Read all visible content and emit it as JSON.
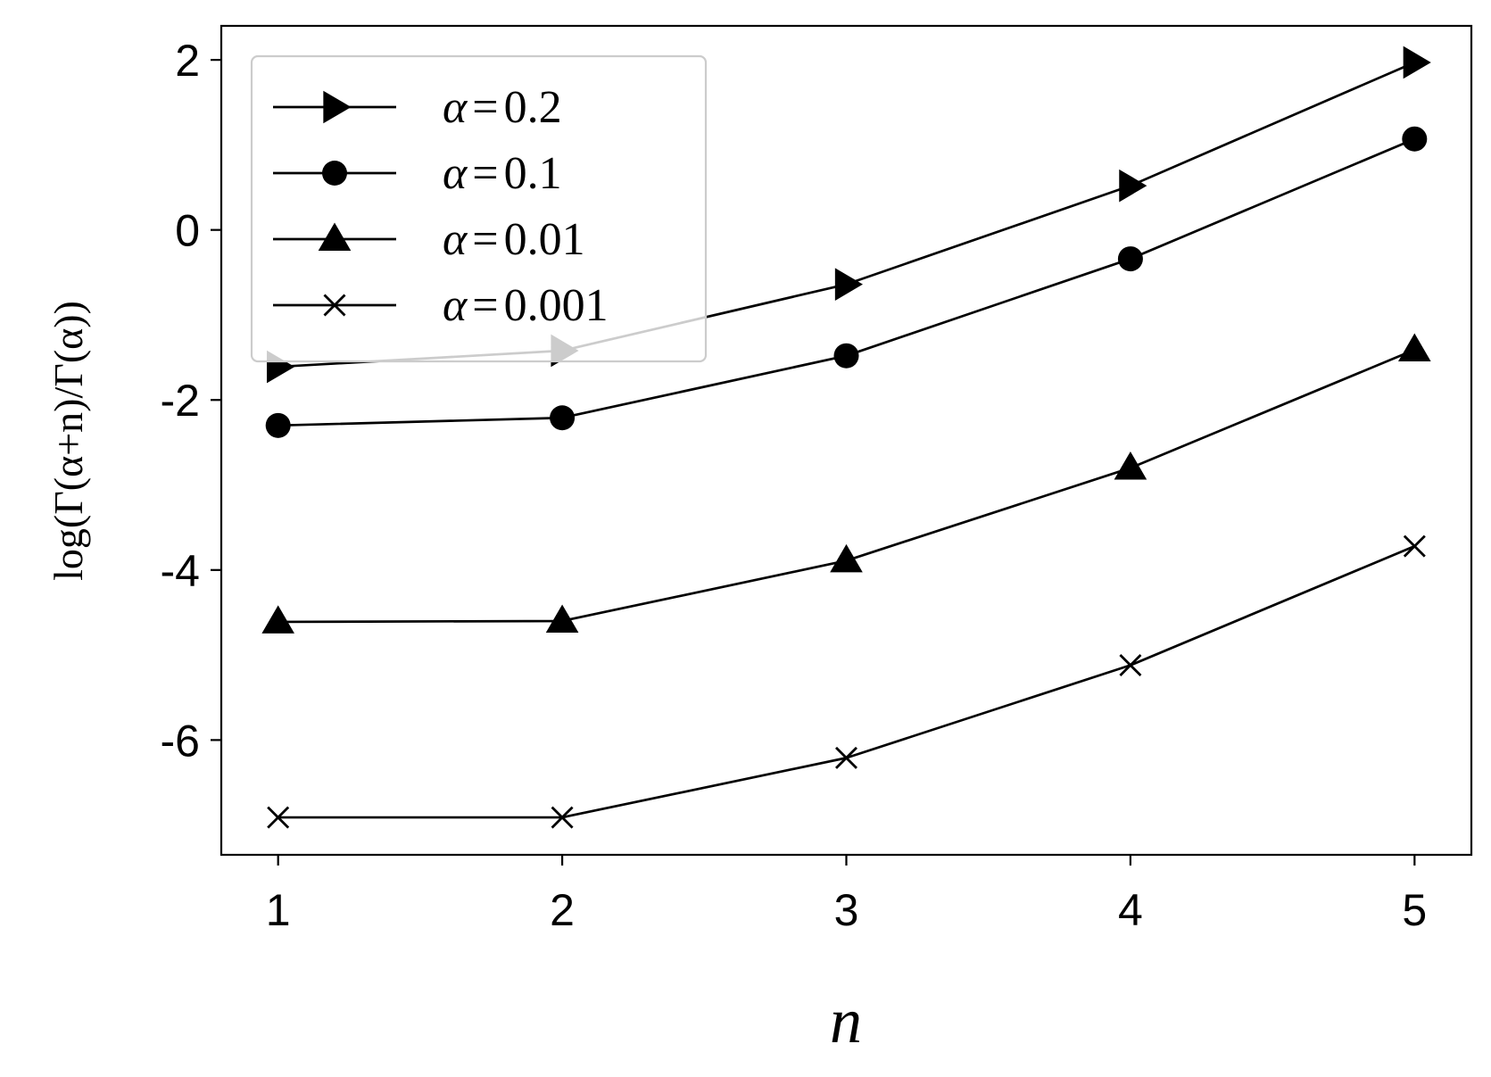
{
  "chart_data": {
    "type": "line",
    "title": "",
    "xlabel": "n",
    "ylabel": "log(Γ(α+n)/Γ(α))",
    "x": [
      1,
      2,
      3,
      4,
      5
    ],
    "x_ticks": [
      1,
      2,
      3,
      4,
      5
    ],
    "x_tick_labels": [
      "1",
      "2",
      "3",
      "4",
      "5"
    ],
    "y_ticks": [
      2,
      0,
      -2,
      -4,
      -6
    ],
    "y_tick_labels": [
      "2",
      "0",
      "-2",
      "-4",
      "-6"
    ],
    "xlim": [
      0.8,
      5.2
    ],
    "ylim": [
      -7.35,
      2.4
    ],
    "grid": false,
    "legend_position": "top-left",
    "colors": {
      "series": "#000000",
      "legend_frame": "#cccccc"
    },
    "series": [
      {
        "name": "α = 0.2",
        "legend_var": "α",
        "legend_eq": "=",
        "legend_value": "0.2",
        "marker": "triangle-right",
        "values": [
          -1.61,
          -1.42,
          -0.64,
          0.52,
          1.97
        ]
      },
      {
        "name": "α = 0.1",
        "legend_var": "α",
        "legend_eq": "=",
        "legend_value": "0.1",
        "marker": "circle",
        "values": [
          -2.3,
          -2.21,
          -1.48,
          -0.34,
          1.07
        ]
      },
      {
        "name": "α = 0.01",
        "legend_var": "α",
        "legend_eq": "=",
        "legend_value": "0.01",
        "marker": "triangle-up",
        "values": [
          -4.61,
          -4.6,
          -3.89,
          -2.8,
          -1.41
        ]
      },
      {
        "name": "α = 0.001",
        "legend_var": "α",
        "legend_eq": "=",
        "legend_value": "0.001",
        "marker": "x",
        "values": [
          -6.91,
          -6.91,
          -6.21,
          -5.12,
          -3.72
        ]
      }
    ]
  }
}
